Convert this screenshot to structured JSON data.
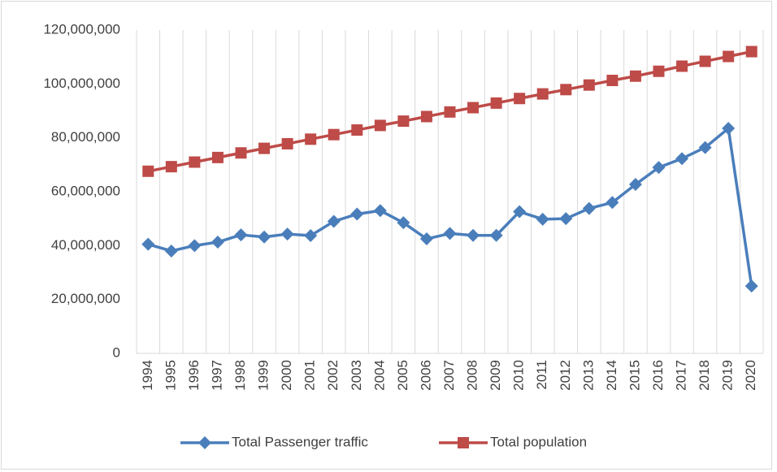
{
  "chart_data": {
    "type": "line",
    "categories": [
      "1994",
      "1995",
      "1996",
      "1997",
      "1998",
      "1999",
      "2000",
      "2001",
      "2002",
      "2003",
      "2004",
      "2005",
      "2006",
      "2007",
      "2008",
      "2009",
      "2010",
      "2011",
      "2012",
      "2013",
      "2014",
      "2015",
      "2016",
      "2017",
      "2018",
      "2019",
      "2020"
    ],
    "series": [
      {
        "name": "Total Passenger traffic",
        "color": "#4a7ebb",
        "marker": "diamond",
        "values": [
          40500000,
          38000000,
          40000000,
          41300000,
          44000000,
          43200000,
          44300000,
          43700000,
          49000000,
          51700000,
          53000000,
          48500000,
          42500000,
          44500000,
          43800000,
          43800000,
          52600000,
          49800000,
          50000000,
          53800000,
          56000000,
          62700000,
          69000000,
          72300000,
          76400000,
          83500000,
          25000000
        ]
      },
      {
        "name": "Total population",
        "color": "#be4b48",
        "marker": "square",
        "values": [
          67600000,
          69300000,
          71000000,
          72700000,
          74400000,
          76100000,
          77800000,
          79500000,
          81200000,
          82900000,
          84600000,
          86200000,
          87900000,
          89600000,
          91200000,
          92900000,
          94600000,
          96300000,
          97900000,
          99600000,
          101300000,
          102900000,
          104700000,
          106600000,
          108400000,
          110200000,
          112000000
        ]
      }
    ],
    "ylim": [
      0,
      120000000
    ],
    "yticks": [
      0,
      {
        "value": 20000000,
        "label": "20,000,000"
      },
      {
        "value": 40000000,
        "label": "40,000,000"
      },
      {
        "value": 60000000,
        "label": "60,000,000"
      },
      {
        "value": 80000000,
        "label": "80,000,000"
      },
      {
        "value": 100000000,
        "label": "100,000,000"
      },
      {
        "value": 120000000,
        "label": "120,000,000"
      }
    ],
    "grid": true,
    "legend": "bottom"
  }
}
